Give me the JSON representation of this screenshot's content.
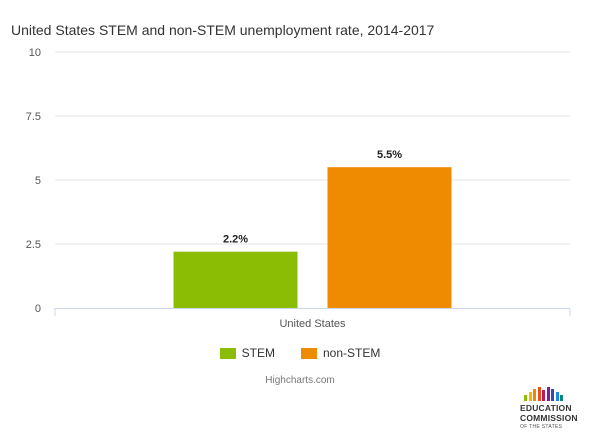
{
  "chart_data": {
    "type": "bar",
    "title": "United States STEM and non-STEM unemployment rate, 2014-2017",
    "categories": [
      "United States"
    ],
    "series": [
      {
        "name": "STEM",
        "values": [
          2.2
        ],
        "color": "#8bbd04",
        "label": "2.2%"
      },
      {
        "name": "non-STEM",
        "values": [
          5.5
        ],
        "color": "#ef8b00",
        "label": "5.5%"
      }
    ],
    "ylim": [
      0,
      10
    ],
    "yticks": [
      "0",
      "2.5",
      "5",
      "7.5",
      "10"
    ],
    "grid": true,
    "legend": "bottom-center"
  },
  "credits": "Highcharts.com",
  "logo": {
    "line1": "EDUCATION",
    "line2": "COMMISSION",
    "line3": "OF THE STATES",
    "bar_colors": [
      "#8bbd04",
      "#f2b705",
      "#ef8b00",
      "#e94e1b",
      "#c2185b",
      "#7b1fa2",
      "#3949ab",
      "#1e88e5",
      "#00897b"
    ]
  }
}
